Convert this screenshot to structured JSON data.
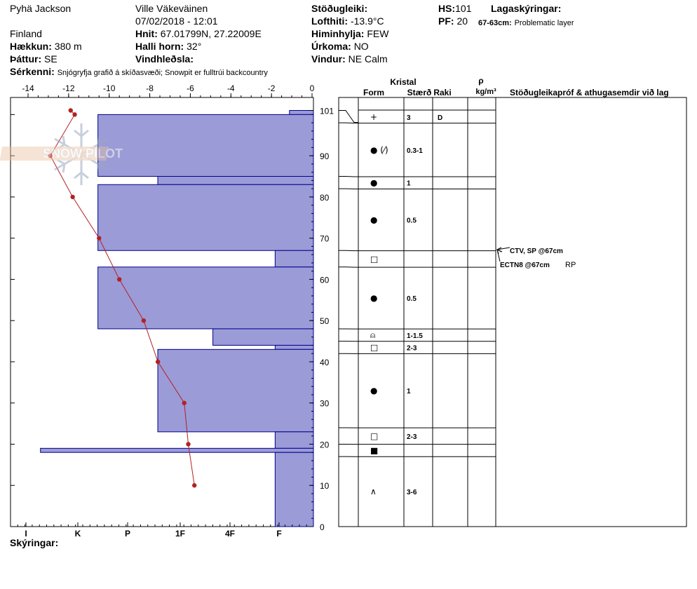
{
  "header": {
    "observer": "Pyhä Jackson",
    "site": "Ville Väkeväinen",
    "datetime": "07/02/2018 - 12:01",
    "country": "Finland",
    "elevation_label": "Hækkun:",
    "elevation_value": "380 m",
    "aspect_label": "Þáttur:",
    "aspect_value": "SE",
    "coords_label": "Hnit:",
    "coords_value": "67.01799N, 27.22009E",
    "slope_label": "Halli horn:",
    "slope_value": "32°",
    "wind_loading_label": "Vindhleðsla:",
    "features_label": "Sérkenni:",
    "features_value": "Snjógryfja grafið á skíðasvæði;  Snowpit er fulltrúi backcountry",
    "stability_label": "Stöðugleiki:",
    "air_temp_label": "Lofthiti:",
    "air_temp_value": "-13.9°C",
    "sky_label": "Himinhylja:",
    "sky_value": "FEW",
    "precip_label": "Úrkoma:",
    "precip_value": "NO",
    "wind_label": "Vindur:",
    "wind_value": "NE Calm",
    "hs_label": "HS:",
    "hs_value": "101",
    "pf_label": "PF:",
    "pf_value": "20",
    "layer_notes_label": "Lagaskýringar:",
    "layer_note_range": "67-63cm:",
    "layer_note_text": "Problematic layer",
    "notes_label": "Skýringar:"
  },
  "logo_text": "SNOW PILOT",
  "columns": {
    "crystal": "Kristal",
    "form": "Form",
    "size": "Stærð",
    "moisture": "Raki",
    "density_symbol": "ρ",
    "density_unit": "kg/m³",
    "tests": "Stöðugleikapróf & athugasemdir við lag"
  },
  "tests": [
    {
      "text": "CTV, SP @67cm",
      "extra": ""
    },
    {
      "text": "ECTN8 @67cm",
      "extra": "RP"
    }
  ],
  "colors": {
    "hardness_fill": "#9b9bd8",
    "hardness_stroke": "#00008b",
    "temp": "#b22222"
  },
  "chart_data": {
    "type": "snow_profile",
    "temperature_axis": {
      "ticks": [
        "-14",
        "-12",
        "-10",
        "-8",
        "-6",
        "-4",
        "-2",
        "0"
      ],
      "range": [
        -14,
        0
      ]
    },
    "hardness_axis": {
      "ticks": [
        "I",
        "K",
        "P",
        "1F",
        "4F",
        "F"
      ],
      "range_index": [
        0,
        6
      ]
    },
    "height_axis": {
      "ticks": [
        "101",
        "90",
        "80",
        "70",
        "60",
        "50",
        "40",
        "30",
        "20",
        "10",
        "0"
      ],
      "range": [
        0,
        101
      ]
    },
    "hardness_layers": [
      {
        "top": 101,
        "bottom": 100,
        "hardness": 0.5
      },
      {
        "top": 100,
        "bottom": 85,
        "hardness": 4.5
      },
      {
        "top": 85,
        "bottom": 83,
        "hardness": 3.25
      },
      {
        "top": 83,
        "bottom": 67,
        "hardness": 4.5
      },
      {
        "top": 67,
        "bottom": 63,
        "hardness": 0.8
      },
      {
        "top": 63,
        "bottom": 48,
        "hardness": 4.5
      },
      {
        "top": 48,
        "bottom": 44,
        "hardness": 2.1
      },
      {
        "top": 44,
        "bottom": 43,
        "hardness": 0.8
      },
      {
        "top": 43,
        "bottom": 23,
        "hardness": 3.25
      },
      {
        "top": 23,
        "bottom": 19,
        "hardness": 0.8
      },
      {
        "top": 19,
        "bottom": 18,
        "hardness": 5.7
      },
      {
        "top": 18,
        "bottom": 0,
        "hardness": 0.8
      }
    ],
    "temperature_profile": [
      {
        "height": 101,
        "temp": -11.9
      },
      {
        "height": 100,
        "temp": -11.7
      },
      {
        "height": 90,
        "temp": -12.9
      },
      {
        "height": 80,
        "temp": -11.8
      },
      {
        "height": 70,
        "temp": -10.5
      },
      {
        "height": 60,
        "temp": -9.5
      },
      {
        "height": 50,
        "temp": -8.3
      },
      {
        "height": 40,
        "temp": -7.6
      },
      {
        "height": 30,
        "temp": -6.3
      },
      {
        "height": 20,
        "temp": -6.1
      },
      {
        "height": 10,
        "temp": -5.8
      }
    ],
    "layers": [
      {
        "top": 101,
        "bottom": 98,
        "form": "+",
        "size": "3",
        "moisture": "D"
      },
      {
        "top": 98,
        "bottom": 85,
        "form": "● (⁄)",
        "size": "0.3-1",
        "moisture": ""
      },
      {
        "top": 85,
        "bottom": 82,
        "form": "●",
        "size": "1",
        "moisture": ""
      },
      {
        "top": 82,
        "bottom": 67,
        "form": "●",
        "size": "0.5",
        "moisture": ""
      },
      {
        "top": 67,
        "bottom": 63,
        "form": "□",
        "size": "",
        "moisture": ""
      },
      {
        "top": 63,
        "bottom": 48,
        "form": "●",
        "size": "0.5",
        "moisture": ""
      },
      {
        "top": 48,
        "bottom": 45,
        "form": "⍝",
        "size": "1-1.5",
        "moisture": ""
      },
      {
        "top": 45,
        "bottom": 42,
        "form": "□",
        "size": "2-3",
        "moisture": ""
      },
      {
        "top": 42,
        "bottom": 24,
        "form": "●",
        "size": "1",
        "moisture": ""
      },
      {
        "top": 24,
        "bottom": 20,
        "form": "□",
        "size": "2-3",
        "moisture": ""
      },
      {
        "top": 20,
        "bottom": 17,
        "form": "■",
        "size": "",
        "moisture": ""
      },
      {
        "top": 17,
        "bottom": 0,
        "form": "∧",
        "size": "3-6",
        "moisture": ""
      }
    ]
  }
}
